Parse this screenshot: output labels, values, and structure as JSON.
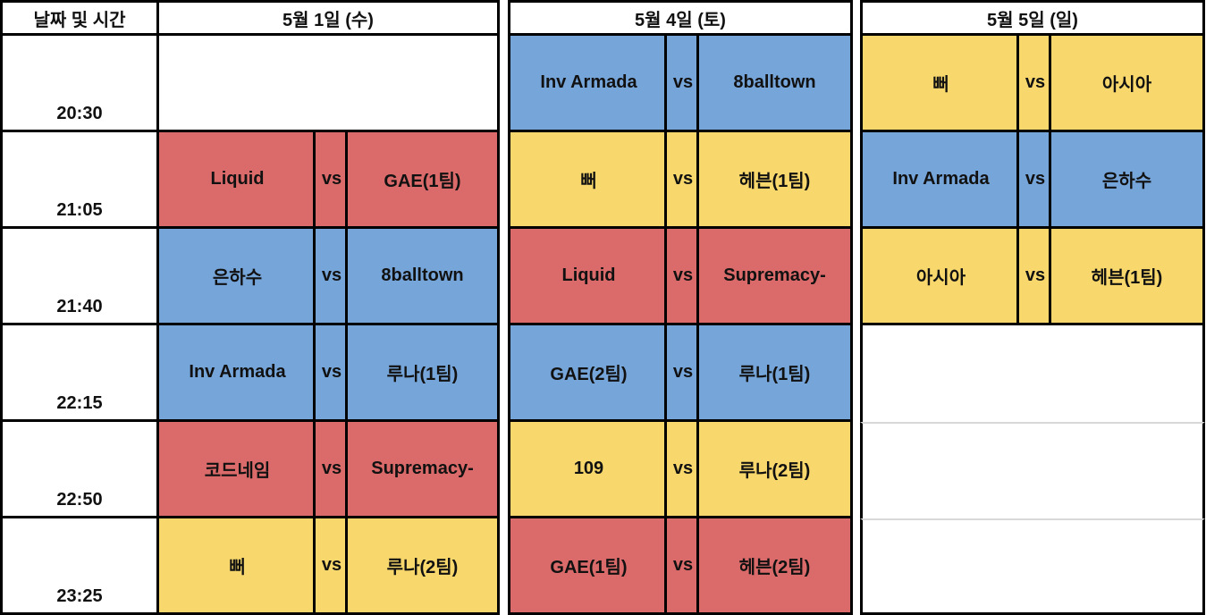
{
  "header": {
    "time_label": "날짜 및 시간",
    "days": [
      "5월 1일 (수)",
      "5월 4일 (토)",
      "5월 5일 (일)"
    ]
  },
  "times": [
    "20:30",
    "21:05",
    "21:40",
    "22:15",
    "22:50",
    "23:25"
  ],
  "vs_label": "vs",
  "colors": {
    "red": "#da6b6a",
    "blue": "#76a5da",
    "yellow": "#f8d86c"
  },
  "schedule": [
    {
      "day": "5월 1일 (수)",
      "matches": [
        null,
        {
          "team1": "Liquid",
          "team2": "GAE(1팀)",
          "color": "red"
        },
        {
          "team1": "은하수",
          "team2": "8balltown",
          "color": "blue"
        },
        {
          "team1": "Inv Armada",
          "team2": "루나(1팀)",
          "color": "blue"
        },
        {
          "team1": "코드네임",
          "team2": "Supremacy-",
          "color": "red"
        },
        {
          "team1": "뻐",
          "team2": "루나(2팀)",
          "color": "yellow"
        }
      ]
    },
    {
      "day": "5월 4일 (토)",
      "matches": [
        {
          "team1": "Inv Armada",
          "team2": "8balltown",
          "color": "blue"
        },
        {
          "team1": "뻐",
          "team2": "헤븐(1팀)",
          "color": "yellow"
        },
        {
          "team1": "Liquid",
          "team2": "Supremacy-",
          "color": "red"
        },
        {
          "team1": "GAE(2팀)",
          "team2": "루나(1팀)",
          "color": "blue"
        },
        {
          "team1": "109",
          "team2": "루나(2팀)",
          "color": "yellow"
        },
        {
          "team1": "GAE(1팀)",
          "team2": "헤븐(2팀)",
          "color": "red"
        }
      ]
    },
    {
      "day": "5월 5일 (일)",
      "matches": [
        {
          "team1": "뻐",
          "team2": "아시아",
          "color": "yellow"
        },
        {
          "team1": "Inv Armada",
          "team2": "은하수",
          "color": "blue"
        },
        {
          "team1": "아시아",
          "team2": "헤븐(1팀)",
          "color": "yellow"
        },
        null,
        null,
        null
      ]
    }
  ]
}
